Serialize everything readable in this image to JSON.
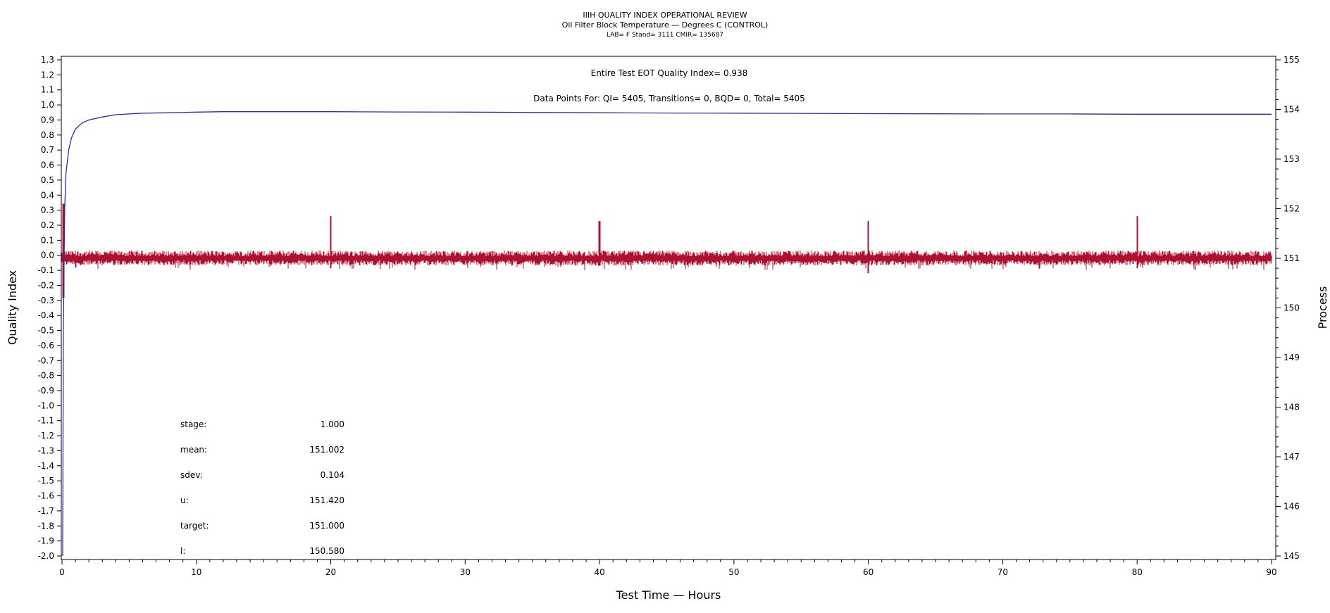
{
  "chart_data": {
    "type": "line",
    "title": "IIIH QUALITY INDEX OPERATIONAL REVIEW",
    "subtitle": "Oil Filter Block Temperature — Degrees C (CONTROL)",
    "subtitle2": "LAB= F Stand= 3111 CMIR= 135687",
    "xlabel": "Test Time — Hours",
    "ylabel": "Quality Index",
    "y2label": "Process",
    "xlim": [
      0,
      90
    ],
    "ylim": [
      -2.0,
      1.3
    ],
    "y2lim": [
      145,
      155
    ],
    "x_ticks": [
      0,
      10,
      20,
      30,
      40,
      50,
      60,
      70,
      80,
      90
    ],
    "y_ticks": [
      "1.3",
      "1.2",
      "1.1",
      "1.0",
      "0.9",
      "0.8",
      "0.7",
      "0.6",
      "0.5",
      "0.4",
      "0.3",
      "0.2",
      "0.1",
      "0.0",
      "-0.1",
      "-0.2",
      "-0.3",
      "-0.4",
      "-0.5",
      "-0.6",
      "-0.7",
      "-0.8",
      "-0.9",
      "-1.0",
      "-1.1",
      "-1.2",
      "-1.3",
      "-1.4",
      "-1.5",
      "-1.6",
      "-1.7",
      "-1.8",
      "-1.9",
      "-2.0"
    ],
    "y2_ticks": [
      "155",
      "154",
      "153",
      "152",
      "151",
      "150",
      "149",
      "148",
      "147",
      "146",
      "145"
    ],
    "annotations": {
      "qi_line": "Entire Test EOT Quality Index=   0.938",
      "points_line": "Data Points For: QI=  5405, Transitions=      0, BQD=      0, Total=  5405"
    },
    "stats": [
      {
        "label": "stage:",
        "value": "1.000"
      },
      {
        "label": "mean:",
        "value": "151.002"
      },
      {
        "label": "sdev:",
        "value": "0.104"
      },
      {
        "label": "u:",
        "value": "151.420"
      },
      {
        "label": "target:",
        "value": "151.000"
      },
      {
        "label": "l:",
        "value": "150.580"
      }
    ],
    "series": [
      {
        "axis": "left",
        "color": "#2b2bb0",
        "x": [
          0.05,
          0.1,
          0.2,
          0.3,
          0.5,
          0.7,
          1.0,
          1.5,
          2,
          3,
          4,
          5,
          6,
          8,
          10,
          12,
          15,
          18,
          20,
          25,
          30,
          35,
          40,
          45,
          50,
          55,
          60,
          65,
          70,
          75,
          80,
          85,
          90
        ],
        "values": [
          -2.0,
          -0.5,
          0.3,
          0.55,
          0.7,
          0.78,
          0.84,
          0.88,
          0.9,
          0.92,
          0.935,
          0.94,
          0.945,
          0.948,
          0.952,
          0.955,
          0.955,
          0.955,
          0.955,
          0.953,
          0.952,
          0.95,
          0.948,
          0.946,
          0.945,
          0.944,
          0.942,
          0.941,
          0.94,
          0.94,
          0.938,
          0.938,
          0.938
        ]
      },
      {
        "axis": "right",
        "color": "#b01030",
        "baseline": 151.0,
        "noise_sdev": 0.104,
        "x_range": [
          0,
          90
        ],
        "spikes": [
          {
            "x": 0.1,
            "max": 152.1,
            "min": 150.2
          },
          {
            "x": 20.0,
            "max": 151.85,
            "min": 150.8
          },
          {
            "x": 40.0,
            "max": 151.75,
            "min": 150.85
          },
          {
            "x": 60.0,
            "max": 151.75,
            "min": 150.7
          },
          {
            "x": 80.0,
            "max": 151.85,
            "min": 150.8
          }
        ]
      }
    ]
  }
}
